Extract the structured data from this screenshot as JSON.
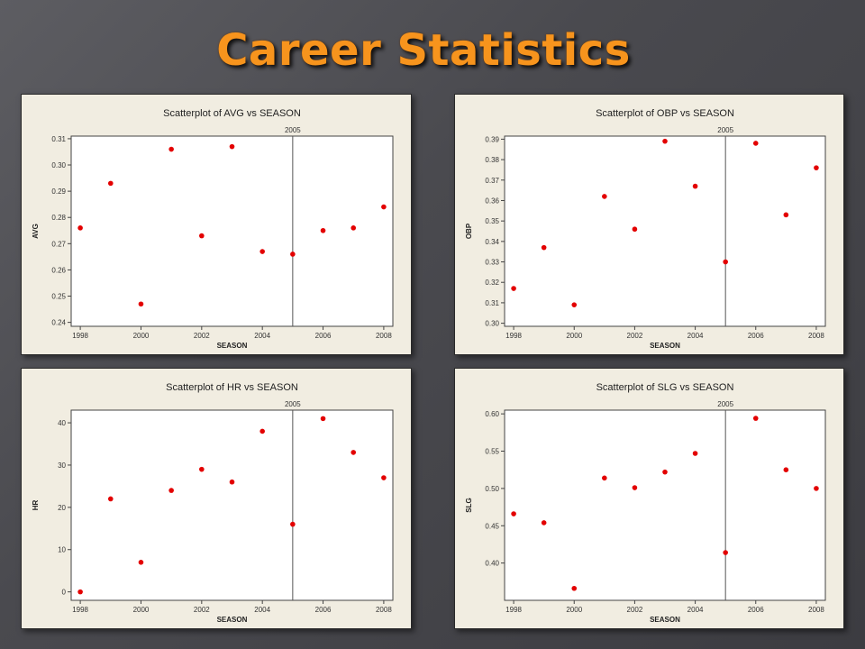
{
  "slide": {
    "title": "Career Statistics"
  },
  "chart_data": [
    {
      "type": "scatter",
      "title": "Scatterplot of AVG vs SEASON",
      "xlabel": "SEASON",
      "ylabel": "AVG",
      "xlim": [
        1997.7,
        2008.3
      ],
      "ylim": [
        0.2385,
        0.311
      ],
      "xticks": [
        1998,
        2000,
        2002,
        2004,
        2006,
        2008
      ],
      "xtick_labels": [
        "1998",
        "2000",
        "2002",
        "2004",
        "2006",
        "2008"
      ],
      "yticks": [
        0.24,
        0.25,
        0.26,
        0.27,
        0.28,
        0.29,
        0.3,
        0.31
      ],
      "ytick_labels": [
        "0.24",
        "0.25",
        "0.26",
        "0.27",
        "0.28",
        "0.29",
        "0.30",
        "0.31"
      ],
      "reference_line": {
        "x": 2005,
        "label": "2005"
      },
      "marker_color": "#e30000",
      "grid": false,
      "points": [
        {
          "x": 1998,
          "y": 0.276
        },
        {
          "x": 1999,
          "y": 0.293
        },
        {
          "x": 2000,
          "y": 0.247
        },
        {
          "x": 2001,
          "y": 0.306
        },
        {
          "x": 2002,
          "y": 0.273
        },
        {
          "x": 2003,
          "y": 0.307
        },
        {
          "x": 2004,
          "y": 0.267
        },
        {
          "x": 2005,
          "y": 0.266
        },
        {
          "x": 2006,
          "y": 0.275
        },
        {
          "x": 2007,
          "y": 0.276
        },
        {
          "x": 2008,
          "y": 0.284
        }
      ]
    },
    {
      "type": "scatter",
      "title": "Scatterplot of OBP vs SEASON",
      "xlabel": "SEASON",
      "ylabel": "OBP",
      "xlim": [
        1997.7,
        2008.3
      ],
      "ylim": [
        0.2985,
        0.3915
      ],
      "xticks": [
        1998,
        2000,
        2002,
        2004,
        2006,
        2008
      ],
      "xtick_labels": [
        "1998",
        "2000",
        "2002",
        "2004",
        "2006",
        "2008"
      ],
      "yticks": [
        0.3,
        0.31,
        0.32,
        0.33,
        0.34,
        0.35,
        0.36,
        0.37,
        0.38,
        0.39
      ],
      "ytick_labels": [
        "0.30",
        "0.31",
        "0.32",
        "0.33",
        "0.34",
        "0.35",
        "0.36",
        "0.37",
        "0.38",
        "0.39"
      ],
      "reference_line": {
        "x": 2005,
        "label": "2005"
      },
      "marker_color": "#e30000",
      "grid": false,
      "points": [
        {
          "x": 1998,
          "y": 0.317
        },
        {
          "x": 1999,
          "y": 0.337
        },
        {
          "x": 2000,
          "y": 0.309
        },
        {
          "x": 2001,
          "y": 0.362
        },
        {
          "x": 2002,
          "y": 0.346
        },
        {
          "x": 2003,
          "y": 0.389
        },
        {
          "x": 2004,
          "y": 0.367
        },
        {
          "x": 2005,
          "y": 0.33
        },
        {
          "x": 2006,
          "y": 0.388
        },
        {
          "x": 2007,
          "y": 0.353
        },
        {
          "x": 2008,
          "y": 0.376
        }
      ]
    },
    {
      "type": "scatter",
      "title": "Scatterplot of HR vs SEASON",
      "xlabel": "SEASON",
      "ylabel": "HR",
      "xlim": [
        1997.7,
        2008.3
      ],
      "ylim": [
        -2,
        43
      ],
      "xticks": [
        1998,
        2000,
        2002,
        2004,
        2006,
        2008
      ],
      "xtick_labels": [
        "1998",
        "2000",
        "2002",
        "2004",
        "2006",
        "2008"
      ],
      "yticks": [
        0,
        10,
        20,
        30,
        40
      ],
      "ytick_labels": [
        "0",
        "10",
        "20",
        "30",
        "40"
      ],
      "reference_line": {
        "x": 2005,
        "label": "2005"
      },
      "marker_color": "#e30000",
      "grid": false,
      "points": [
        {
          "x": 1998,
          "y": 0
        },
        {
          "x": 1999,
          "y": 22
        },
        {
          "x": 2000,
          "y": 7
        },
        {
          "x": 2001,
          "y": 24
        },
        {
          "x": 2002,
          "y": 29
        },
        {
          "x": 2003,
          "y": 26
        },
        {
          "x": 2004,
          "y": 38
        },
        {
          "x": 2005,
          "y": 16
        },
        {
          "x": 2006,
          "y": 41
        },
        {
          "x": 2007,
          "y": 33
        },
        {
          "x": 2008,
          "y": 27
        }
      ]
    },
    {
      "type": "scatter",
      "title": "Scatterplot of SLG vs SEASON",
      "xlabel": "SEASON",
      "ylabel": "SLG",
      "xlim": [
        1997.7,
        2008.3
      ],
      "ylim": [
        0.35,
        0.605
      ],
      "xticks": [
        1998,
        2000,
        2002,
        2004,
        2006,
        2008
      ],
      "xtick_labels": [
        "1998",
        "2000",
        "2002",
        "2004",
        "2006",
        "2008"
      ],
      "yticks": [
        0.4,
        0.45,
        0.5,
        0.55,
        0.6
      ],
      "ytick_labels": [
        "0.40",
        "0.45",
        "0.50",
        "0.55",
        "0.60"
      ],
      "reference_line": {
        "x": 2005,
        "label": "2005"
      },
      "marker_color": "#e30000",
      "grid": false,
      "points": [
        {
          "x": 1998,
          "y": 0.466
        },
        {
          "x": 1999,
          "y": 0.454
        },
        {
          "x": 2000,
          "y": 0.366
        },
        {
          "x": 2001,
          "y": 0.514
        },
        {
          "x": 2002,
          "y": 0.501
        },
        {
          "x": 2003,
          "y": 0.522
        },
        {
          "x": 2004,
          "y": 0.547
        },
        {
          "x": 2005,
          "y": 0.414
        },
        {
          "x": 2006,
          "y": 0.594
        },
        {
          "x": 2007,
          "y": 0.525
        },
        {
          "x": 2008,
          "y": 0.5
        }
      ]
    }
  ]
}
